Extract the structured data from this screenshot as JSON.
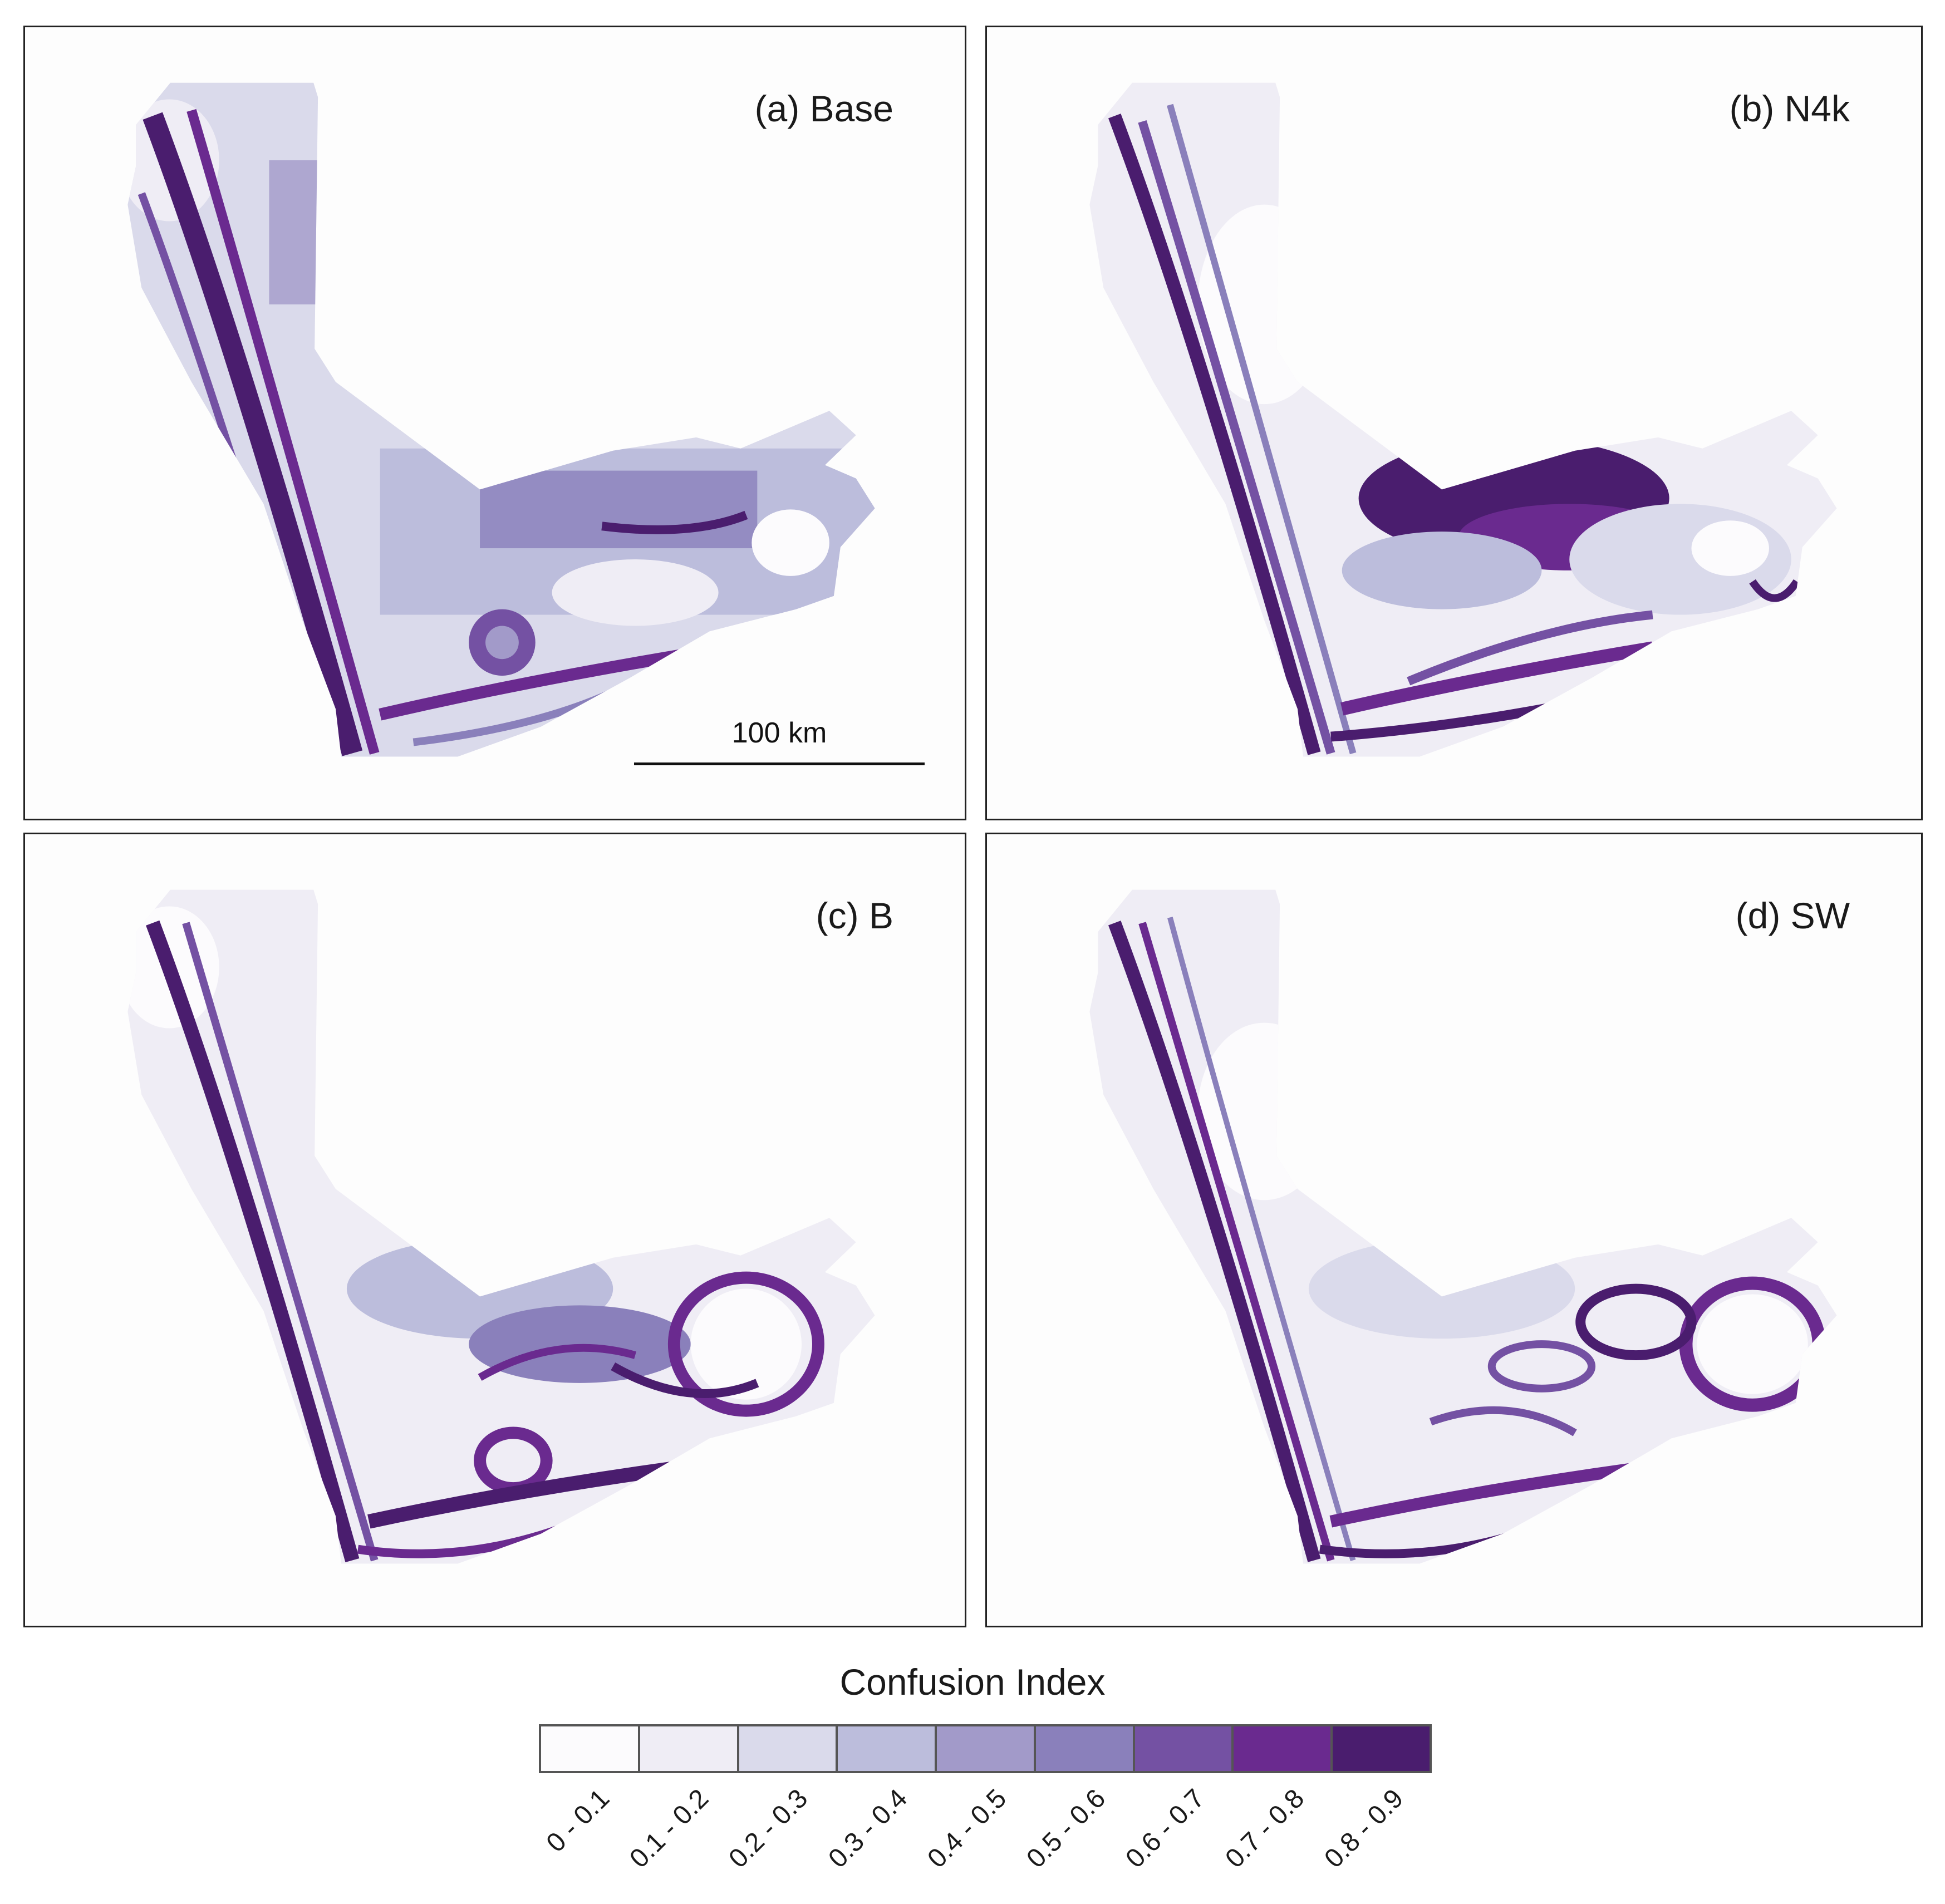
{
  "panels": [
    {
      "id": "a",
      "title": "(a) Base",
      "scale_label": "100 km"
    },
    {
      "id": "b",
      "title": "(b) N4k"
    },
    {
      "id": "c",
      "title": "(c) B"
    },
    {
      "id": "d",
      "title": "(d) SW"
    }
  ],
  "legend": {
    "title": "Confusion Index",
    "classes": [
      {
        "label": "0 - 0.1",
        "color": "#fcfbfd"
      },
      {
        "label": "0.1 - 0.2",
        "color": "#efedf5"
      },
      {
        "label": "0.2 - 0.3",
        "color": "#dadaeb"
      },
      {
        "label": "0.3 - 0.4",
        "color": "#bcbddc"
      },
      {
        "label": "0.4 - 0.5",
        "color": "#a29ac9"
      },
      {
        "label": "0.5 - 0.6",
        "color": "#8a80bb"
      },
      {
        "label": "0.6 - 0.7",
        "color": "#7451a3"
      },
      {
        "label": "0.7 - 0.8",
        "color": "#6a2a8f"
      },
      {
        "label": "0.8 - 0.9",
        "color": "#4a1d6e"
      }
    ]
  }
}
